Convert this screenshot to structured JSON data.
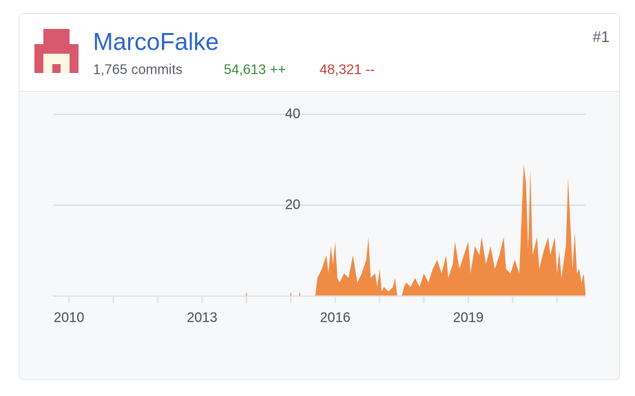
{
  "header": {
    "name": "MarcoFalke",
    "commits": "1,765 commits",
    "additions": "54,613 ++",
    "deletions": "48,321 --",
    "rank": "#1"
  },
  "chart_data": {
    "type": "area",
    "color": "#ef8b44",
    "grid": true,
    "xlim": [
      2009.64,
      2021.64
    ],
    "xticks": [
      2010,
      2013,
      2016,
      2019
    ],
    "xminorticks": [
      2011,
      2012,
      2014,
      2015,
      2017,
      2018,
      2020,
      2021
    ],
    "ylim": [
      0,
      40
    ],
    "yticks": [
      20,
      40
    ],
    "x": [
      2009.64,
      2013.98,
      2014.0,
      2014.02,
      2014.98,
      2015.0,
      2015.02,
      2015.18,
      2015.2,
      2015.22,
      2015.55,
      2015.6,
      2015.7,
      2015.8,
      2015.85,
      2015.9,
      2015.95,
      2016.0,
      2016.05,
      2016.1,
      2016.2,
      2016.3,
      2016.4,
      2016.45,
      2016.5,
      2016.6,
      2016.7,
      2016.75,
      2016.8,
      2016.9,
      2016.95,
      2017.0,
      2017.05,
      2017.1,
      2017.2,
      2017.3,
      2017.35,
      2017.4,
      2017.5,
      2017.55,
      2017.6,
      2017.7,
      2017.8,
      2017.9,
      2018.0,
      2018.1,
      2018.2,
      2018.3,
      2018.4,
      2018.5,
      2018.55,
      2018.65,
      2018.7,
      2018.8,
      2018.9,
      2019.0,
      2019.05,
      2019.15,
      2019.25,
      2019.3,
      2019.4,
      2019.5,
      2019.6,
      2019.7,
      2019.8,
      2019.85,
      2019.95,
      2020.05,
      2020.15,
      2020.25,
      2020.3,
      2020.35,
      2020.4,
      2020.45,
      2020.55,
      2020.6,
      2020.7,
      2020.8,
      2020.85,
      2020.95,
      2021.0,
      2021.05,
      2021.1,
      2021.2,
      2021.25,
      2021.3,
      2021.35,
      2021.4,
      2021.45,
      2021.5,
      2021.55,
      2021.6,
      2021.64
    ],
    "values": [
      0,
      0,
      1,
      0,
      0,
      1,
      0,
      0,
      1,
      0,
      0,
      4,
      6,
      9,
      5,
      11,
      7,
      12,
      4,
      3,
      5,
      4,
      9,
      6,
      3,
      5,
      8,
      13,
      4,
      5,
      2,
      6,
      1,
      2,
      1,
      2,
      4,
      0,
      0,
      2,
      3,
      2,
      4,
      2,
      5,
      3,
      6,
      8,
      5,
      9,
      4,
      7,
      12,
      6,
      9,
      12,
      5,
      11,
      9,
      13,
      7,
      11,
      6,
      9,
      13,
      6,
      5,
      8,
      5,
      29,
      25,
      10,
      28,
      9,
      13,
      6,
      10,
      13,
      9,
      13,
      5,
      10,
      4,
      11,
      26,
      16,
      6,
      14,
      5,
      6,
      3,
      5,
      1
    ]
  }
}
